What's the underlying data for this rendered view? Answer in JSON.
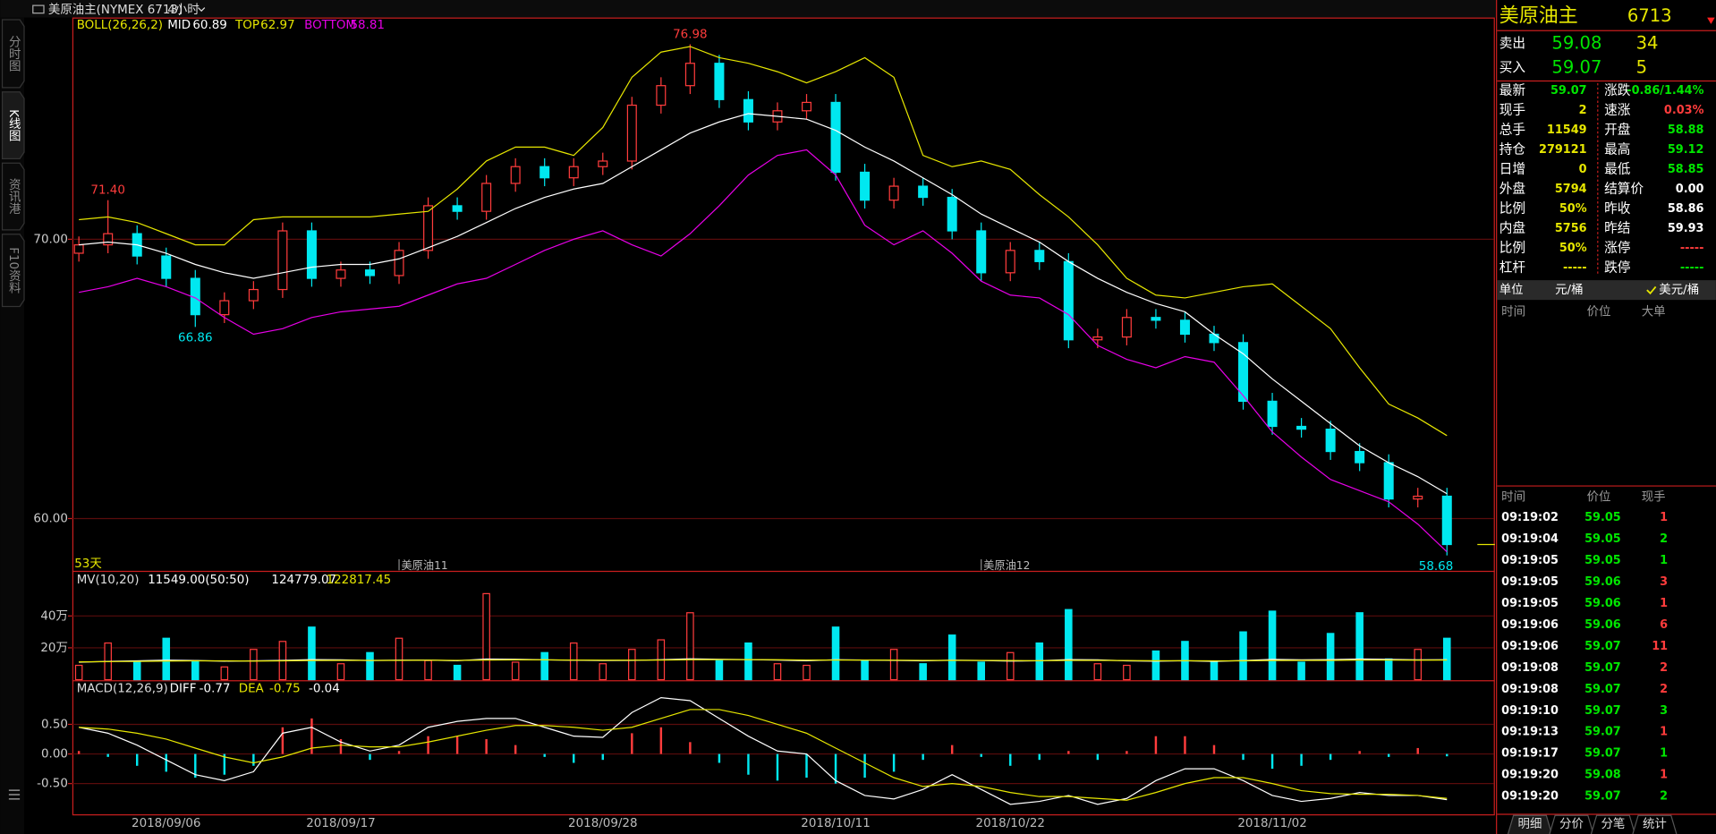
{
  "header": {
    "title": "美原油主(NYMEX 6713)",
    "period": "4小时"
  },
  "sidebar": [
    "分时图",
    "K线图",
    "资讯港",
    "F10资料"
  ],
  "chart_data": [
    {
      "type": "candlestick",
      "indicator": "BOLL(26,26,2)",
      "period_label": "53天",
      "categories": [
        null,
        null,
        null,
        "2018/09/06",
        null,
        null,
        null,
        null,
        null,
        "2018/09/17",
        null,
        null,
        null,
        null,
        null,
        null,
        null,
        null,
        "2018/09/28",
        null,
        null,
        null,
        null,
        null,
        null,
        null,
        "2018/10/11",
        null,
        null,
        null,
        null,
        null,
        "2018/10/22",
        null,
        null,
        null,
        null,
        null,
        null,
        null,
        null,
        "2018/11/02",
        null,
        null,
        null,
        null,
        null,
        null
      ],
      "contracts": [
        null,
        null,
        null,
        null,
        null,
        null,
        null,
        null,
        null,
        null,
        null,
        "美原油11",
        null,
        null,
        null,
        null,
        null,
        null,
        null,
        null,
        null,
        null,
        null,
        null,
        null,
        null,
        null,
        null,
        null,
        null,
        null,
        "美原油12",
        null,
        null,
        null,
        null,
        null,
        null,
        null,
        null,
        null,
        null,
        null,
        null,
        null,
        null,
        null,
        null
      ],
      "open": [
        69.5,
        69.8,
        70.2,
        69.4,
        68.6,
        67.3,
        67.8,
        68.2,
        70.3,
        68.6,
        68.9,
        68.7,
        69.6,
        71.2,
        71.0,
        72.0,
        72.6,
        72.2,
        72.6,
        72.8,
        74.8,
        75.5,
        76.3,
        75.0,
        74.2,
        74.6,
        74.9,
        72.4,
        71.4,
        71.9,
        71.5,
        70.3,
        68.8,
        69.6,
        69.2,
        66.4,
        66.5,
        67.2,
        67.1,
        66.6,
        66.3,
        64.2,
        63.3,
        63.2,
        62.4,
        62.0,
        60.7,
        60.8
      ],
      "high": [
        70.1,
        71.4,
        70.5,
        69.7,
        68.9,
        68.1,
        68.5,
        70.6,
        70.6,
        69.2,
        69.2,
        69.9,
        71.5,
        71.5,
        72.3,
        72.9,
        72.9,
        72.9,
        73.1,
        75.1,
        75.8,
        76.98,
        76.6,
        75.3,
        74.9,
        75.2,
        75.2,
        72.7,
        72.2,
        72.2,
        71.8,
        70.6,
        69.9,
        69.9,
        69.5,
        66.8,
        67.5,
        67.5,
        67.4,
        66.9,
        66.6,
        64.5,
        63.6,
        63.5,
        62.7,
        62.3,
        61.1,
        61.1
      ],
      "low": [
        69.2,
        69.5,
        69.1,
        68.3,
        66.86,
        67.0,
        67.5,
        67.9,
        68.3,
        68.3,
        68.4,
        68.4,
        69.3,
        70.7,
        70.7,
        71.7,
        71.9,
        71.9,
        72.3,
        72.5,
        74.5,
        75.2,
        74.7,
        73.9,
        73.9,
        74.3,
        72.1,
        71.1,
        71.1,
        71.2,
        70.0,
        68.5,
        68.5,
        68.9,
        66.1,
        66.1,
        66.2,
        66.8,
        66.3,
        66.0,
        63.9,
        63.0,
        62.9,
        62.1,
        61.7,
        60.4,
        60.4,
        58.68
      ],
      "close": [
        69.8,
        70.2,
        69.4,
        68.6,
        67.3,
        67.8,
        68.2,
        70.3,
        68.6,
        68.9,
        68.7,
        69.6,
        71.2,
        71.0,
        72.0,
        72.6,
        72.2,
        72.6,
        72.8,
        74.8,
        75.5,
        76.3,
        75.0,
        74.2,
        74.6,
        74.9,
        72.4,
        71.4,
        71.9,
        71.5,
        70.3,
        68.8,
        69.6,
        69.2,
        66.4,
        66.5,
        67.2,
        67.1,
        66.6,
        66.3,
        64.2,
        63.3,
        63.2,
        62.4,
        62.0,
        60.7,
        60.8,
        59.07
      ],
      "up_color": "#ff3c3c",
      "down_color": "#00e8f0",
      "ylim": [
        58.15,
        77.9
      ],
      "yticks": [
        {
          "value": 70,
          "label": "70.00"
        },
        {
          "value": 60,
          "label": "60.00"
        }
      ],
      "grid": true,
      "series": [
        {
          "name": "MID",
          "color": "#ffffff",
          "values": [
            69.8,
            69.9,
            69.8,
            69.5,
            69.1,
            68.8,
            68.6,
            68.8,
            69.0,
            69.1,
            69.1,
            69.3,
            69.7,
            70.1,
            70.6,
            71.1,
            71.5,
            71.8,
            72.0,
            72.6,
            73.2,
            73.8,
            74.2,
            74.5,
            74.4,
            74.3,
            73.9,
            73.3,
            72.8,
            72.2,
            71.6,
            70.9,
            70.4,
            69.9,
            69.2,
            68.6,
            68.1,
            67.7,
            67.4,
            66.6,
            65.9,
            65.0,
            64.2,
            63.4,
            62.6,
            62.0,
            61.5,
            60.89
          ]
        },
        {
          "name": "TOP",
          "color": "#e6e600",
          "values": [
            70.7,
            70.8,
            70.6,
            70.2,
            69.8,
            69.8,
            70.7,
            70.8,
            70.8,
            70.8,
            70.8,
            70.9,
            71.0,
            71.8,
            72.8,
            73.3,
            73.3,
            73.0,
            74.0,
            75.8,
            76.7,
            76.9,
            76.5,
            76.3,
            76.0,
            75.6,
            76.0,
            76.5,
            75.8,
            73.0,
            72.6,
            72.8,
            72.5,
            71.6,
            70.8,
            69.8,
            68.6,
            68.0,
            67.9,
            68.1,
            68.3,
            68.4,
            67.6,
            66.8,
            65.4,
            64.1,
            63.6,
            62.97
          ]
        },
        {
          "name": "BOTTOM",
          "color": "#e600e6",
          "values": [
            68.1,
            68.3,
            68.6,
            68.3,
            67.9,
            67.2,
            66.6,
            66.8,
            67.2,
            67.4,
            67.5,
            67.6,
            68.0,
            68.4,
            68.6,
            69.1,
            69.6,
            70.0,
            70.3,
            69.8,
            69.4,
            70.2,
            71.2,
            72.3,
            73.0,
            73.2,
            72.3,
            70.5,
            69.8,
            70.3,
            69.5,
            68.5,
            68.0,
            67.9,
            67.3,
            66.2,
            65.7,
            65.4,
            65.8,
            65.6,
            64.4,
            63.1,
            62.2,
            61.4,
            61.0,
            60.6,
            59.8,
            58.81
          ]
        }
      ],
      "annotations": [
        {
          "value": 76.98,
          "label": "76.98",
          "color": "#ff3c3c"
        },
        {
          "value": 71.4,
          "label": "71.40",
          "color": "#ff3c3c"
        },
        {
          "value": 66.86,
          "label": "66.86",
          "color": "#00e8f0"
        },
        {
          "value": 58.68,
          "label": "58.68",
          "color": "#00e8f0"
        }
      ]
    },
    {
      "type": "bar",
      "indicator": "MV(10,20)",
      "info": "11549.00(50:50)",
      "values": [
        90000,
        230000,
        110000,
        260000,
        120000,
        80000,
        190000,
        240000,
        330000,
        100000,
        170000,
        260000,
        120000,
        90000,
        540000,
        110000,
        170000,
        230000,
        100000,
        190000,
        250000,
        420000,
        120000,
        230000,
        100000,
        90000,
        330000,
        120000,
        190000,
        100000,
        280000,
        110000,
        170000,
        230000,
        440000,
        100000,
        90000,
        180000,
        240000,
        110000,
        300000,
        430000,
        110000,
        290000,
        420000,
        130000,
        190000,
        260000
      ],
      "ylim": [
        0,
        680000
      ],
      "yticks": [
        {
          "value": 200000,
          "label": "20万"
        },
        {
          "value": 400000,
          "label": "40万"
        }
      ],
      "grid": true,
      "series": [
        {
          "color": "#ffffff",
          "values": [
            110000,
            115000,
            118000,
            122000,
            120000,
            116000,
            118000,
            121000,
            126000,
            124000,
            120000,
            122000,
            123000,
            119000,
            130000,
            128000,
            124000,
            122000,
            120000,
            121000,
            125000,
            131000,
            128000,
            126000,
            123000,
            119000,
            125000,
            123000,
            121000,
            118000,
            122000,
            120000,
            117000,
            119000,
            126000,
            124000,
            118000,
            116000,
            119000,
            115000,
            120000,
            127000,
            124000,
            126000,
            130000,
            127000,
            124000,
            124779.07
          ]
        },
        {
          "color": "#e6e600",
          "values": [
            112000,
            113000,
            115000,
            117000,
            118000,
            118000,
            117000,
            118000,
            120000,
            121000,
            121000,
            121000,
            122000,
            121000,
            123000,
            124000,
            124000,
            123000,
            122000,
            122000,
            123000,
            125000,
            126000,
            126000,
            125000,
            123000,
            123000,
            123000,
            122000,
            121000,
            121000,
            121000,
            120000,
            119000,
            121000,
            121000,
            120000,
            119000,
            119000,
            118000,
            118000,
            120000,
            121000,
            121000,
            123000,
            123000,
            122000,
            122817.45
          ]
        }
      ]
    },
    {
      "type": "macd",
      "indicator": "MACD(12,26,9)",
      "ylim": [
        -1.0,
        1.18
      ],
      "yticks": [
        {
          "value": 0.5,
          "label": "0.50"
        },
        {
          "value": 0,
          "label": "0.00"
        },
        {
          "value": -0.5,
          "label": "-0.50"
        }
      ],
      "grid": true,
      "series": [
        {
          "name": "DIFF",
          "color": "#ffffff",
          "values": [
            0.45,
            0.35,
            0.15,
            -0.1,
            -0.35,
            -0.45,
            -0.3,
            0.35,
            0.45,
            0.2,
            0.05,
            0.15,
            0.45,
            0.55,
            0.6,
            0.6,
            0.45,
            0.3,
            0.28,
            0.7,
            0.95,
            0.9,
            0.6,
            0.3,
            0.05,
            0.0,
            -0.45,
            -0.7,
            -0.76,
            -0.6,
            -0.35,
            -0.6,
            -0.85,
            -0.8,
            -0.7,
            -0.85,
            -0.75,
            -0.45,
            -0.25,
            -0.25,
            -0.45,
            -0.7,
            -0.8,
            -0.75,
            -0.65,
            -0.7,
            -0.7,
            -0.77
          ]
        },
        {
          "name": "DEA",
          "color": "#e6e600",
          "values": [
            0.45,
            0.42,
            0.35,
            0.25,
            0.1,
            -0.05,
            -0.15,
            -0.05,
            0.1,
            0.15,
            0.12,
            0.12,
            0.2,
            0.3,
            0.4,
            0.48,
            0.48,
            0.45,
            0.4,
            0.45,
            0.6,
            0.75,
            0.75,
            0.65,
            0.5,
            0.35,
            0.1,
            -0.15,
            -0.4,
            -0.55,
            -0.5,
            -0.55,
            -0.65,
            -0.72,
            -0.72,
            -0.75,
            -0.78,
            -0.65,
            -0.5,
            -0.4,
            -0.4,
            -0.5,
            -0.62,
            -0.67,
            -0.68,
            -0.68,
            -0.7,
            -0.75
          ]
        }
      ],
      "histogram": [
        0.05,
        -0.05,
        -0.2,
        -0.3,
        -0.4,
        -0.35,
        -0.2,
        0.45,
        0.6,
        0.25,
        -0.1,
        0.05,
        0.3,
        0.3,
        0.25,
        0.15,
        -0.05,
        -0.15,
        -0.1,
        0.35,
        0.45,
        0.2,
        -0.15,
        -0.35,
        -0.45,
        -0.4,
        -0.5,
        -0.4,
        -0.3,
        -0.1,
        0.15,
        -0.05,
        -0.2,
        -0.1,
        0.05,
        -0.1,
        0.05,
        0.3,
        0.3,
        0.15,
        -0.1,
        -0.25,
        -0.2,
        -0.1,
        0.05,
        -0.05,
        0.1,
        -0.04
      ]
    }
  ],
  "quote": {
    "name": "美原油主",
    "code": "6713",
    "ask": {
      "label": "卖出",
      "price": "59.08",
      "volume": "34"
    },
    "bid": {
      "label": "买入",
      "price": "59.07",
      "volume": "5"
    },
    "rows": [
      [
        {
          "text": "最新"
        },
        {
          "text": "59.07",
          "color": "#00e600"
        },
        {
          "text": "涨跌"
        },
        {
          "text": "-0.86/1.44%",
          "color": "#00e600"
        }
      ],
      [
        {
          "text": "现手"
        },
        {
          "text": "2",
          "color": "#e6e600"
        },
        {
          "text": "速涨"
        },
        {
          "text": "0.03%",
          "color": "#ff3c3c"
        }
      ],
      [
        {
          "text": "总手"
        },
        {
          "text": "11549",
          "color": "#e6e600"
        },
        {
          "text": "开盘"
        },
        {
          "text": "58.88",
          "color": "#00e600"
        }
      ],
      [
        {
          "text": "持仓"
        },
        {
          "text": "279121",
          "color": "#e6e600"
        },
        {
          "text": "最高"
        },
        {
          "text": "59.12",
          "color": "#00e600"
        }
      ],
      [
        {
          "text": "日增"
        },
        {
          "text": "0",
          "color": "#e6e600"
        },
        {
          "text": "最低"
        },
        {
          "text": "58.85",
          "color": "#00e600"
        }
      ],
      [
        {
          "text": "外盘"
        },
        {
          "text": "5794",
          "color": "#e6e600"
        },
        {
          "text": "结算价"
        },
        {
          "text": "0.00",
          "color": "#ffffff"
        }
      ],
      [
        {
          "text": "比例"
        },
        {
          "text": "50%",
          "color": "#e6e600"
        },
        {
          "text": "昨收"
        },
        {
          "text": "58.86",
          "color": "#ffffff"
        }
      ],
      [
        {
          "text": "内盘"
        },
        {
          "text": "5756",
          "color": "#e6e600"
        },
        {
          "text": "昨结"
        },
        {
          "text": "59.93",
          "color": "#ffffff"
        }
      ],
      [
        {
          "text": "比例"
        },
        {
          "text": "50%",
          "color": "#e6e600"
        },
        {
          "text": "涨停"
        },
        {
          "text": "-----",
          "color": "#ff3c3c"
        }
      ],
      [
        {
          "text": "杠杆"
        },
        {
          "text": "-----",
          "color": "#e6e600"
        },
        {
          "text": "跌停"
        },
        {
          "text": "-----",
          "color": "#00e600"
        }
      ]
    ],
    "units": {
      "label": "单位",
      "options": [
        "元/桶",
        "美元/桶"
      ]
    },
    "detail_headers": [
      "时间",
      "价位",
      "大单"
    ]
  },
  "trades": {
    "headers": [
      "时间",
      "价位",
      "现手"
    ],
    "rows": [
      {
        "time": "09:19:02",
        "price": "59.05",
        "volume": "1",
        "color": "#ff3c3c"
      },
      {
        "time": "09:19:04",
        "price": "59.05",
        "volume": "2",
        "color": "#00e600"
      },
      {
        "time": "09:19:05",
        "price": "59.05",
        "volume": "1",
        "color": "#00e600"
      },
      {
        "time": "09:19:05",
        "price": "59.06",
        "volume": "3",
        "color": "#ff3c3c"
      },
      {
        "time": "09:19:05",
        "price": "59.06",
        "volume": "1",
        "color": "#ff3c3c"
      },
      {
        "time": "09:19:06",
        "price": "59.06",
        "volume": "6",
        "color": "#ff3c3c"
      },
      {
        "time": "09:19:06",
        "price": "59.07",
        "volume": "11",
        "color": "#ff3c3c"
      },
      {
        "time": "09:19:08",
        "price": "59.07",
        "volume": "2",
        "color": "#ff3c3c"
      },
      {
        "time": "09:19:08",
        "price": "59.07",
        "volume": "2",
        "color": "#ff3c3c"
      },
      {
        "time": "09:19:10",
        "price": "59.07",
        "volume": "3",
        "color": "#00e600"
      },
      {
        "time": "09:19:13",
        "price": "59.07",
        "volume": "1",
        "color": "#ff3c3c"
      },
      {
        "time": "09:19:17",
        "price": "59.07",
        "volume": "1",
        "color": "#00e600"
      },
      {
        "time": "09:19:20",
        "price": "59.08",
        "volume": "1",
        "color": "#ff3c3c"
      },
      {
        "time": "09:19:20",
        "price": "59.07",
        "volume": "2",
        "color": "#00e600"
      }
    ]
  },
  "tabs": [
    "明细",
    "分价",
    "分笔",
    "统计"
  ]
}
